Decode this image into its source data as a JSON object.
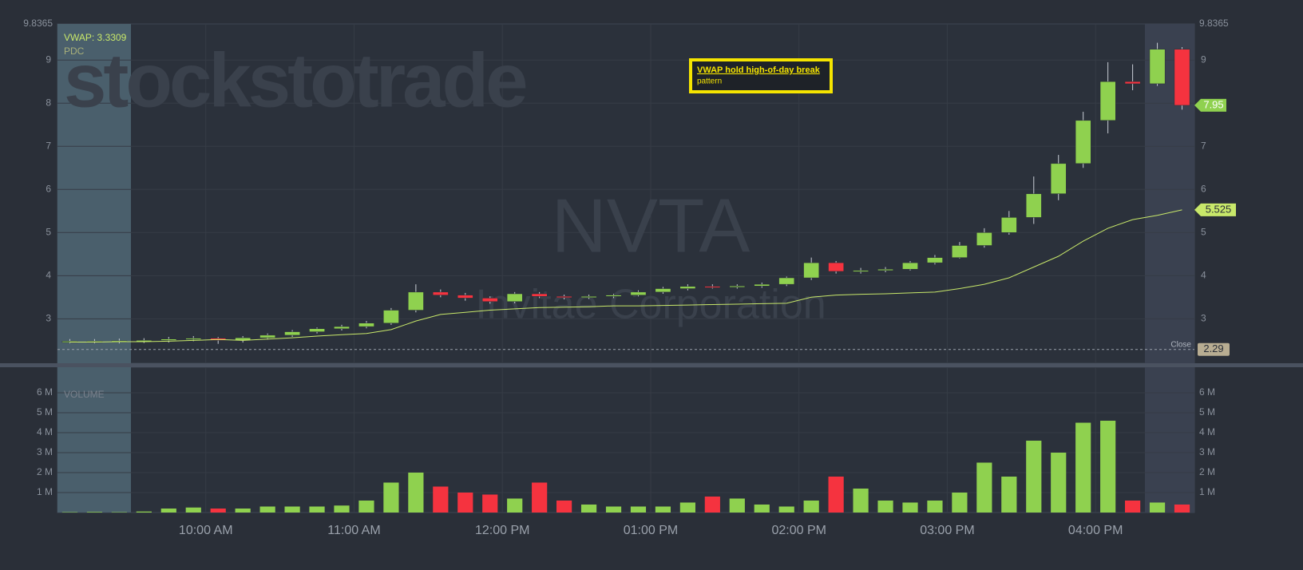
{
  "chart_data": {
    "type": "candlestick",
    "symbol": "NVTA",
    "company": "Invitae Corporation",
    "watermark": "stockstotrade",
    "vwap_label": "VWAP: 3.3309",
    "pdc_label": "PDC",
    "annotation": {
      "title": "VWAP hold high-of-day break",
      "text": "pattern"
    },
    "volume_label": "VOLUME",
    "close_label": "Close",
    "prev_close": 2.29,
    "last_price": 7.95,
    "top_value": 9.8365,
    "x": [
      540,
      550,
      560,
      570,
      580,
      590,
      600,
      610,
      620,
      630,
      640,
      650,
      660,
      670,
      680,
      690,
      700,
      710,
      720,
      730,
      740,
      750,
      760,
      770,
      780,
      790,
      800,
      810,
      820,
      830,
      840,
      850,
      860,
      870,
      880,
      890,
      900,
      910,
      920,
      930,
      940,
      950,
      960,
      970,
      980,
      990
    ],
    "open": [
      2.48,
      2.48,
      2.48,
      2.49,
      2.5,
      2.53,
      2.55,
      2.5,
      2.56,
      2.62,
      2.7,
      2.77,
      2.82,
      2.9,
      3.2,
      3.62,
      3.55,
      3.48,
      3.4,
      3.58,
      3.52,
      3.5,
      3.52,
      3.55,
      3.62,
      3.7,
      3.75,
      3.74,
      3.76,
      3.8,
      3.95,
      4.3,
      4.1,
      4.12,
      4.15,
      4.3,
      4.42,
      4.7,
      5.0,
      5.35,
      5.9,
      6.6,
      7.6,
      8.5,
      8.45,
      9.25
    ],
    "high": [
      2.53,
      2.53,
      2.54,
      2.55,
      2.58,
      2.6,
      2.58,
      2.6,
      2.66,
      2.74,
      2.8,
      2.86,
      2.95,
      3.25,
      3.8,
      3.68,
      3.6,
      3.52,
      3.62,
      3.62,
      3.56,
      3.56,
      3.58,
      3.66,
      3.74,
      3.8,
      3.8,
      3.8,
      3.84,
      3.98,
      4.42,
      4.34,
      4.18,
      4.2,
      4.34,
      4.48,
      4.78,
      5.1,
      5.5,
      6.3,
      6.8,
      7.8,
      8.95,
      8.9,
      9.4,
      9.3
    ],
    "low": [
      2.43,
      2.43,
      2.43,
      2.44,
      2.45,
      2.48,
      2.42,
      2.45,
      2.52,
      2.58,
      2.66,
      2.73,
      2.78,
      2.86,
      3.15,
      3.5,
      3.42,
      3.35,
      3.36,
      3.48,
      3.45,
      3.46,
      3.48,
      3.52,
      3.58,
      3.66,
      3.7,
      3.7,
      3.72,
      3.76,
      3.9,
      4.05,
      4.05,
      4.08,
      4.12,
      4.26,
      4.4,
      4.65,
      4.95,
      5.2,
      5.75,
      6.5,
      7.3,
      8.3,
      8.4,
      7.85
    ],
    "close": [
      2.48,
      2.48,
      2.49,
      2.5,
      2.53,
      2.55,
      2.5,
      2.56,
      2.62,
      2.7,
      2.77,
      2.82,
      2.9,
      3.2,
      3.62,
      3.55,
      3.48,
      3.4,
      3.58,
      3.52,
      3.5,
      3.52,
      3.55,
      3.62,
      3.7,
      3.75,
      3.74,
      3.76,
      3.8,
      3.95,
      4.3,
      4.1,
      4.12,
      4.15,
      4.3,
      4.42,
      4.7,
      5.0,
      5.35,
      5.9,
      6.6,
      7.6,
      8.5,
      8.45,
      9.25,
      7.95
    ],
    "volume": [
      0.02,
      0.03,
      0.02,
      0.05,
      0.2,
      0.25,
      0.2,
      0.2,
      0.3,
      0.3,
      0.3,
      0.35,
      0.6,
      1.5,
      2.0,
      1.3,
      1.0,
      0.9,
      0.7,
      1.5,
      0.6,
      0.4,
      0.3,
      0.3,
      0.3,
      0.5,
      0.8,
      0.7,
      0.4,
      0.3,
      0.6,
      1.8,
      1.2,
      0.6,
      0.5,
      0.6,
      1.0,
      2.5,
      1.8,
      3.6,
      3.0,
      4.5,
      4.6,
      0.6,
      0.5,
      0.4
    ],
    "vwap": [
      2.46,
      2.46,
      2.47,
      2.47,
      2.48,
      2.5,
      2.52,
      2.5,
      2.53,
      2.56,
      2.6,
      2.63,
      2.66,
      2.75,
      2.95,
      3.1,
      3.15,
      3.2,
      3.23,
      3.26,
      3.27,
      3.28,
      3.3,
      3.3,
      3.31,
      3.32,
      3.33,
      3.34,
      3.35,
      3.36,
      3.5,
      3.55,
      3.57,
      3.58,
      3.6,
      3.62,
      3.7,
      3.8,
      3.95,
      4.2,
      4.45,
      4.8,
      5.1,
      5.3,
      5.4,
      5.525
    ],
    "up_color": "#8fd14f",
    "down_color": "#f5333f",
    "vwap_color": "#c8e86a",
    "xlim": [
      540,
      1000
    ],
    "xticks": [
      {
        "value": 600,
        "label": "10:00 AM"
      },
      {
        "value": 660,
        "label": "11:00 AM"
      },
      {
        "value": 720,
        "label": "12:00 PM"
      },
      {
        "value": 780,
        "label": "01:00 PM"
      },
      {
        "value": 840,
        "label": "02:00 PM"
      },
      {
        "value": 900,
        "label": "03:00 PM"
      },
      {
        "value": 960,
        "label": "04:00 PM"
      }
    ],
    "ylim": [
      1.97,
      9.8365
    ],
    "yticks": [
      3,
      4,
      5,
      6,
      7,
      8,
      9
    ],
    "volume_ylim": [
      0,
      7.28
    ],
    "volume_ticks": [
      {
        "value": 1,
        "label": "1 M"
      },
      {
        "value": 2,
        "label": "2 M"
      },
      {
        "value": 3,
        "label": "3 M"
      },
      {
        "value": 4,
        "label": "4 M"
      },
      {
        "value": 5,
        "label": "5 M"
      },
      {
        "value": 6,
        "label": "6 M"
      }
    ],
    "grid": true
  }
}
